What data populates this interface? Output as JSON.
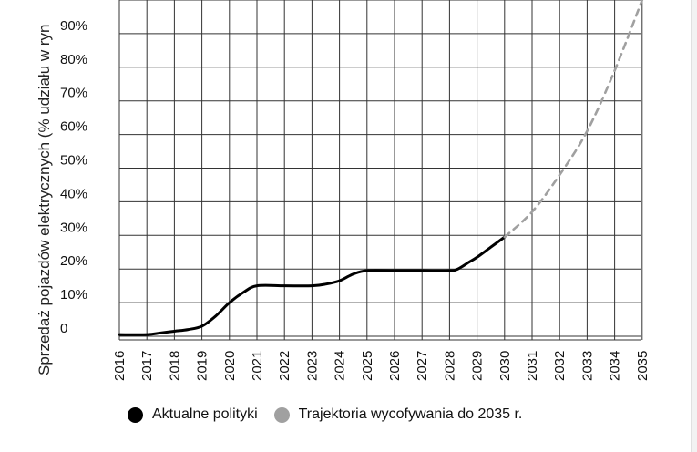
{
  "chart_data": {
    "type": "line",
    "ylabel": "Sprzedaż pojazdów elektrycznych (% udziału w ryn",
    "x_tick_labels": [
      "2016",
      "2017",
      "2018",
      "2019",
      "2020",
      "2021",
      "2022",
      "2023",
      "2024",
      "2025",
      "2026",
      "2027",
      "2028",
      "2029",
      "2030",
      "2031",
      "2032",
      "2033",
      "2034",
      "2035"
    ],
    "y_tick_labels": [
      "0",
      "10%",
      "20%",
      "30%",
      "40%",
      "50%",
      "60%",
      "70%",
      "80%",
      "90%"
    ],
    "xlim": [
      2016,
      2035
    ],
    "ylim": [
      0,
      100
    ],
    "grid": true,
    "legend_position": "bottom",
    "series": [
      {
        "name": "Aktualne polityki",
        "color": "#000000",
        "style": "solid",
        "points": [
          [
            2016,
            0.5
          ],
          [
            2017,
            0.5
          ],
          [
            2017.5,
            1
          ],
          [
            2018,
            1.5
          ],
          [
            2018.5,
            2
          ],
          [
            2019,
            3
          ],
          [
            2019.5,
            6
          ],
          [
            2020,
            10
          ],
          [
            2020.5,
            13
          ],
          [
            2021,
            15
          ],
          [
            2022,
            15
          ],
          [
            2023,
            15
          ],
          [
            2023.5,
            15.5
          ],
          [
            2024,
            16.5
          ],
          [
            2024.5,
            18.5
          ],
          [
            2025,
            19.5
          ],
          [
            2026,
            19.5
          ],
          [
            2027,
            19.5
          ],
          [
            2028,
            19.5
          ],
          [
            2028.3,
            20
          ],
          [
            2028.7,
            22
          ],
          [
            2029,
            23.5
          ],
          [
            2029.5,
            26.5
          ],
          [
            2030,
            29.5
          ]
        ]
      },
      {
        "name": "Trajektoria wycofywania do 2035 r.",
        "color": "#a0a0a0",
        "style": "dashed",
        "points": [
          [
            2030,
            29.5
          ],
          [
            2031,
            37
          ],
          [
            2032,
            48
          ],
          [
            2033,
            61
          ],
          [
            2034,
            79
          ],
          [
            2035,
            100
          ]
        ]
      }
    ]
  }
}
